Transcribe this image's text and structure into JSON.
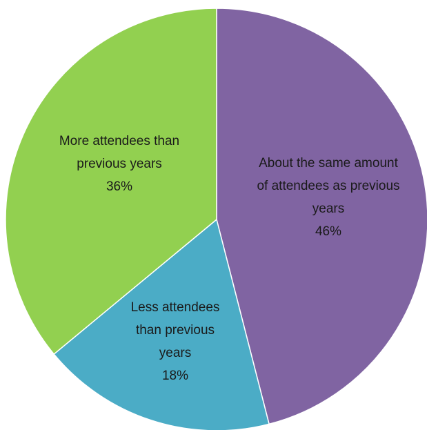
{
  "chart_data": {
    "type": "pie",
    "start": "top",
    "direction": "clockwise",
    "slices": [
      {
        "lines": [
          "About the same amount",
          "of attendees as previous",
          "years"
        ],
        "value_label": "46%",
        "value": 46,
        "color": "#8064a2"
      },
      {
        "lines": [
          "Less attendees",
          "than previous",
          "years"
        ],
        "value_label": "18%",
        "value": 18,
        "color": "#4bacc6"
      },
      {
        "lines": [
          "More attendees than",
          "previous years"
        ],
        "value_label": "36%",
        "value": 36,
        "color": "#92d050"
      }
    ]
  }
}
